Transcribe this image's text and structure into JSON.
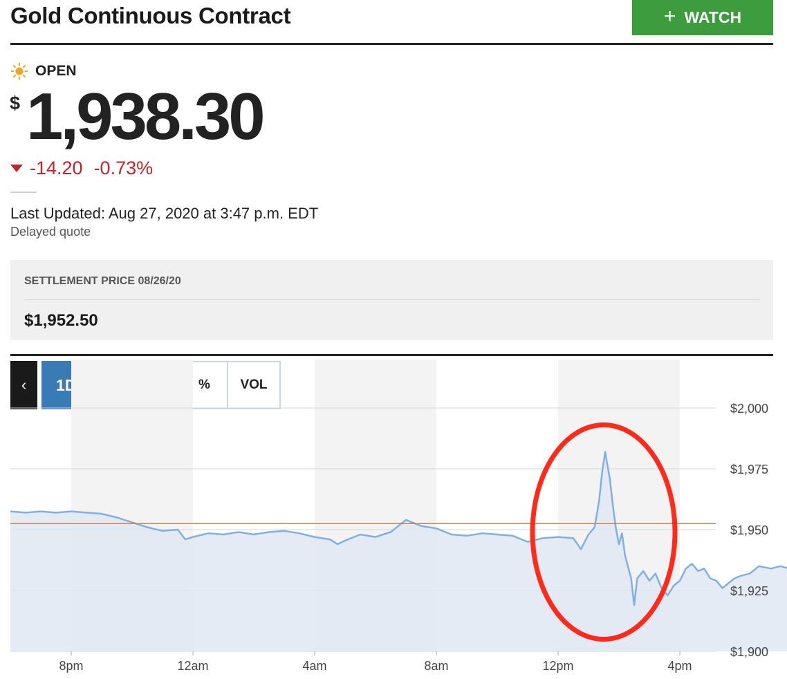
{
  "header": {
    "title": "Gold Continuous Contract",
    "watch_label": "WATCH",
    "watch_icon": "plus-icon"
  },
  "quote": {
    "status_icon": "sun-icon",
    "status": "OPEN",
    "currency": "$",
    "price": "1,938.30",
    "change": "-14.20",
    "change_percent": "-0.73%",
    "change_direction": "down",
    "change_color": "#c4222a",
    "last_updated": "Last Updated: Aug 27, 2020 at 3:47 p.m. EDT",
    "delayed_note": "Delayed quote"
  },
  "settlement": {
    "label": "SETTLEMENT PRICE 08/26/20",
    "value": "$1,952.50"
  },
  "chart_controls": {
    "back_icon": "chevron-left-icon",
    "range": "1D",
    "modes": [
      "$",
      "%",
      "VOL"
    ],
    "active_mode": "$"
  },
  "chart_data": {
    "type": "area",
    "x_ticks": [
      "8pm",
      "12am",
      "4am",
      "8am",
      "12pm",
      "4pm"
    ],
    "y_ticks": [
      "$2,000",
      "$1,975",
      "$1,950",
      "$1,925",
      "$1,900"
    ],
    "ylim": [
      1900,
      2000
    ],
    "time_range_hours": [
      18,
      40
    ],
    "reference_line": {
      "value": 1952.5,
      "color": "#e07b39"
    },
    "line_color": "#7fb0e0",
    "fill_color": "#dfe8f2",
    "annotation": {
      "shape": "ellipse",
      "color": "#ff2a1a"
    },
    "series": [
      {
        "points": [
          [
            18.0,
            1957.5
          ],
          [
            18.5,
            1957.0
          ],
          [
            19.0,
            1957.5
          ],
          [
            19.5,
            1957.0
          ],
          [
            20.0,
            1957.5
          ],
          [
            20.5,
            1957.0
          ],
          [
            21.0,
            1956.5
          ],
          [
            21.5,
            1955.0
          ],
          [
            22.0,
            1953.0
          ],
          [
            22.5,
            1951.0
          ],
          [
            23.0,
            1949.5
          ],
          [
            23.5,
            1950.0
          ],
          [
            23.75,
            1946.0
          ],
          [
            24.0,
            1947.0
          ],
          [
            24.5,
            1948.5
          ],
          [
            25.0,
            1948.0
          ],
          [
            25.5,
            1949.0
          ],
          [
            26.0,
            1948.0
          ],
          [
            26.5,
            1949.0
          ],
          [
            27.0,
            1949.5
          ],
          [
            27.5,
            1948.5
          ],
          [
            28.0,
            1947.0
          ],
          [
            28.5,
            1946.0
          ],
          [
            28.75,
            1944.0
          ],
          [
            29.0,
            1945.5
          ],
          [
            29.5,
            1948.0
          ],
          [
            30.0,
            1947.0
          ],
          [
            30.5,
            1949.0
          ],
          [
            31.0,
            1954.0
          ],
          [
            31.5,
            1951.5
          ],
          [
            32.0,
            1950.5
          ],
          [
            32.5,
            1948.0
          ],
          [
            33.0,
            1947.5
          ],
          [
            33.5,
            1948.5
          ],
          [
            34.0,
            1948.0
          ],
          [
            34.5,
            1947.5
          ],
          [
            35.0,
            1945.0
          ],
          [
            35.5,
            1946.5
          ],
          [
            36.0,
            1947.0
          ],
          [
            36.5,
            1946.5
          ],
          [
            36.75,
            1942.0
          ],
          [
            37.0,
            1948.0
          ],
          [
            37.2,
            1951.0
          ],
          [
            37.35,
            1962.0
          ],
          [
            37.45,
            1974.0
          ],
          [
            37.55,
            1982.0
          ],
          [
            37.6,
            1978.0
          ],
          [
            37.7,
            1971.0
          ],
          [
            37.8,
            1960.0
          ],
          [
            37.9,
            1950.5
          ],
          [
            38.0,
            1944.0
          ],
          [
            38.1,
            1948.5
          ],
          [
            38.2,
            1939.5
          ],
          [
            38.4,
            1930.0
          ],
          [
            38.5,
            1919.0
          ],
          [
            38.6,
            1930.0
          ],
          [
            38.8,
            1933.0
          ],
          [
            39.0,
            1929.0
          ],
          [
            39.2,
            1932.0
          ],
          [
            39.4,
            1926.0
          ],
          [
            39.6,
            1923.0
          ],
          [
            39.8,
            1927.0
          ],
          [
            40.0,
            1929.0
          ],
          [
            40.2,
            1934.0
          ],
          [
            40.4,
            1936.0
          ],
          [
            40.6,
            1933.0
          ],
          [
            40.8,
            1934.0
          ],
          [
            41.0,
            1930.0
          ],
          [
            41.2,
            1929.0
          ],
          [
            41.4,
            1926.0
          ],
          [
            41.6,
            1928.0
          ],
          [
            41.8,
            1930.0
          ],
          [
            42.0,
            1931.0
          ],
          [
            42.3,
            1932.0
          ],
          [
            42.6,
            1935.0
          ],
          [
            43.0,
            1934.0
          ],
          [
            43.3,
            1935.0
          ],
          [
            43.6,
            1934.0
          ],
          [
            43.9,
            1936.0
          ],
          [
            44.2,
            1938.0
          ],
          [
            44.5,
            1936.0
          ],
          [
            44.8,
            1935.5
          ],
          [
            45.2,
            1936.0
          ],
          [
            45.5,
            1935.5
          ],
          [
            45.8,
            1937.0
          ],
          [
            45.9,
            1936.0
          ]
        ]
      }
    ]
  }
}
